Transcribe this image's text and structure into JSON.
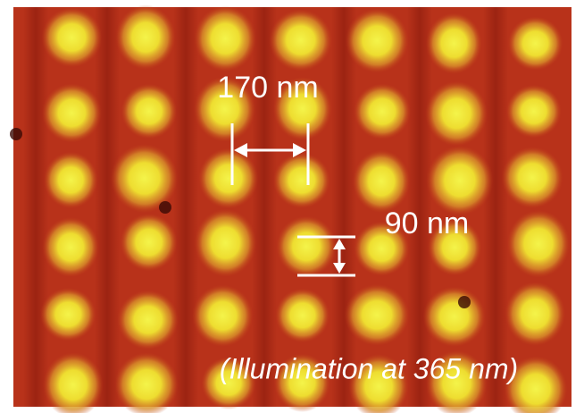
{
  "annotations": {
    "spacing_label": "170 nm",
    "size_label": "90 nm",
    "caption": "(Illumination at 365 nm)"
  }
}
